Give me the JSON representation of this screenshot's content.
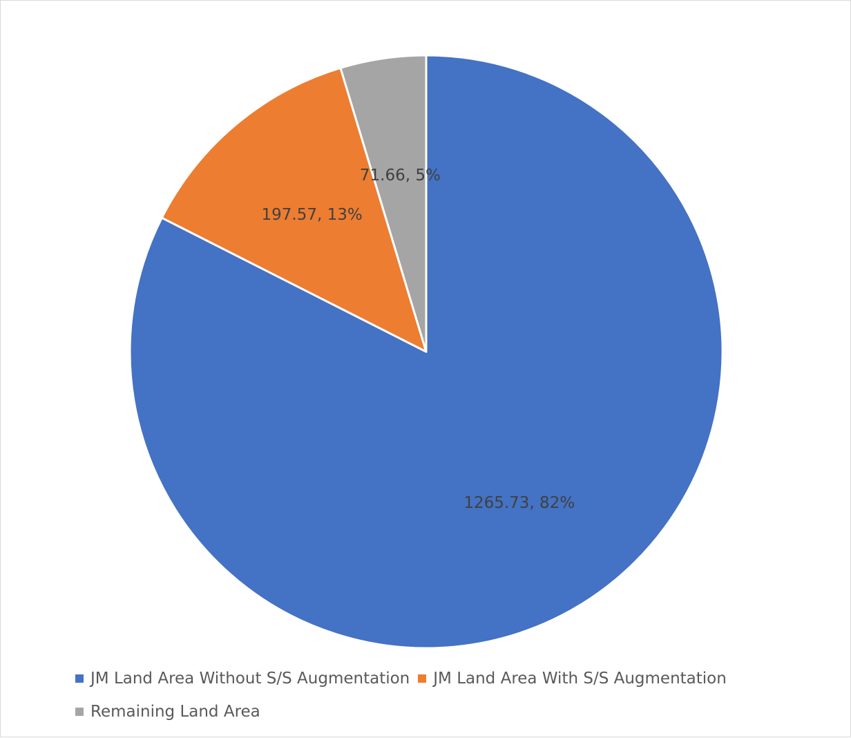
{
  "chart_data": {
    "type": "pie",
    "title": "",
    "categories": [
      "JM Land Area Without S/S Augmentation",
      "JM Land Area With S/S Augmentation",
      "Remaining Land Area"
    ],
    "values": [
      1265.73,
      197.57,
      71.66
    ],
    "data_labels": [
      "1265.73, 82%",
      "197.57, 13%",
      "71.66, 5%"
    ],
    "colors": [
      "#4472C4",
      "#ED7D31",
      "#A5A5A5"
    ],
    "start_angle": "12 o'clock",
    "direction": "clockwise",
    "legend_position": "bottom"
  }
}
